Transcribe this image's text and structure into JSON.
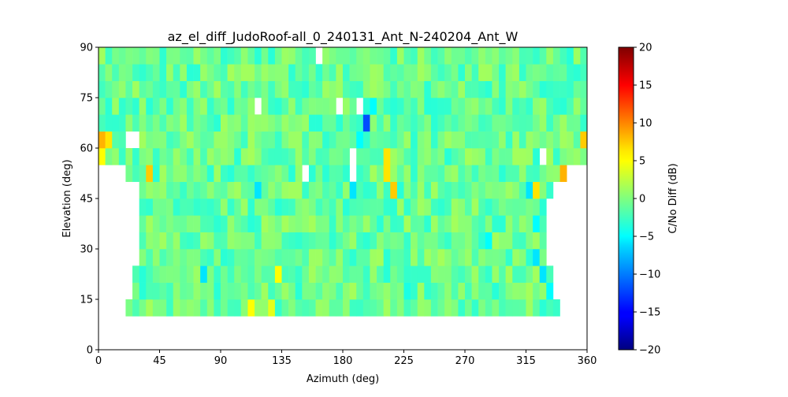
{
  "chart_data": {
    "type": "heatmap",
    "title": "az_el_diff_JudoRoof-all_0_240131_Ant_N-240204_Ant_W",
    "xlabel": "Azimuth (deg)",
    "ylabel": "Elevation (deg)",
    "xlim": [
      0,
      360
    ],
    "ylim": [
      0,
      90
    ],
    "xticks": [
      0,
      45,
      90,
      135,
      180,
      225,
      270,
      315,
      360
    ],
    "yticks": [
      0,
      15,
      30,
      45,
      60,
      75,
      90
    ],
    "cell_width": 5,
    "cell_height": 5,
    "colorbar": {
      "label": "C/No Diff (dB)",
      "min": -20,
      "max": 20,
      "ticks": [
        20,
        15,
        10,
        5,
        0,
        -5,
        -10,
        -15,
        -20
      ],
      "colormap": "jet"
    },
    "coverage": [
      {
        "el_min": 10,
        "el_max": 15,
        "az_min": 20,
        "az_max": 340
      },
      {
        "el_min": 15,
        "el_max": 25,
        "az_min": 25,
        "az_max": 335
      },
      {
        "el_min": 25,
        "el_max": 45,
        "az_min": 30,
        "az_max": 330
      },
      {
        "el_min": 45,
        "el_max": 50,
        "az_min": 30,
        "az_max": 335
      },
      {
        "el_min": 50,
        "el_max": 55,
        "az_min": 20,
        "az_max": 345
      },
      {
        "el_min": 55,
        "el_max": 90,
        "az_min": 0,
        "az_max": 360
      }
    ],
    "background_value": -1,
    "notable_cells": [
      {
        "az": 0,
        "el": 60,
        "value": 8
      },
      {
        "az": 0,
        "el": 55,
        "value": 5
      },
      {
        "az": 5,
        "el": 60,
        "value": 6
      },
      {
        "az": 35,
        "el": 50,
        "value": 7
      },
      {
        "az": 320,
        "el": 45,
        "value": 6
      },
      {
        "az": 340,
        "el": 50,
        "value": 8
      },
      {
        "az": 355,
        "el": 60,
        "value": 7
      },
      {
        "az": 195,
        "el": 65,
        "value": -12
      },
      {
        "az": 200,
        "el": 70,
        "value": -5
      },
      {
        "az": 190,
        "el": 60,
        "value": -5
      },
      {
        "az": 185,
        "el": 45,
        "value": -6
      },
      {
        "az": 115,
        "el": 45,
        "value": -6
      },
      {
        "az": 210,
        "el": 50,
        "value": 6
      },
      {
        "az": 210,
        "el": 55,
        "value": 6
      },
      {
        "az": 215,
        "el": 45,
        "value": 7
      },
      {
        "az": 315,
        "el": 45,
        "value": -6
      },
      {
        "az": 320,
        "el": 35,
        "value": -5
      },
      {
        "az": 320,
        "el": 25,
        "value": -6
      },
      {
        "az": 325,
        "el": 20,
        "value": -6
      },
      {
        "az": 330,
        "el": 15,
        "value": -5
      },
      {
        "az": 75,
        "el": 20,
        "value": -6
      },
      {
        "az": 285,
        "el": 30,
        "value": -5
      },
      {
        "az": 130,
        "el": 20,
        "value": 5
      },
      {
        "az": 110,
        "el": 10,
        "value": 5
      },
      {
        "az": 125,
        "el": 10,
        "value": 4
      },
      {
        "az": 225,
        "el": 15,
        "value": -4
      }
    ],
    "missing_cells": [
      {
        "az": 160,
        "el": 85
      },
      {
        "az": 115,
        "el": 70
      },
      {
        "az": 175,
        "el": 70
      },
      {
        "az": 190,
        "el": 70
      },
      {
        "az": 20,
        "el": 60
      },
      {
        "az": 25,
        "el": 60
      },
      {
        "az": 150,
        "el": 50
      },
      {
        "az": 185,
        "el": 50
      },
      {
        "az": 185,
        "el": 55
      },
      {
        "az": 325,
        "el": 55
      }
    ]
  }
}
